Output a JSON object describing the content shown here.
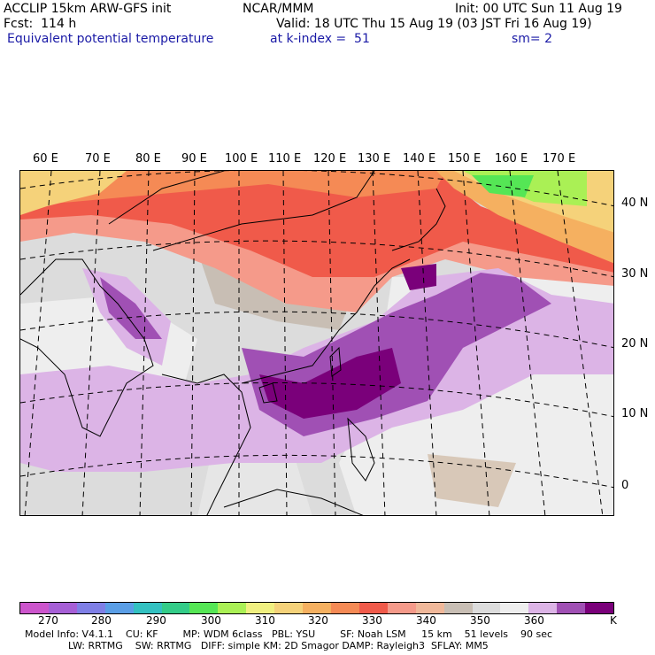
{
  "header": {
    "line1_left": "ACCLIP 15km ARW-GFS init",
    "line1_center": "NCAR/MMM",
    "line1_right": "Init: 00 UTC Sun 11 Aug 19",
    "line2_left": "Fcst:  114 h",
    "line2_right": "Valid: 18 UTC Thu 15 Aug 19 (03 JST Fri 16 Aug 19)",
    "line3_left": "Equivalent potential temperature",
    "line3_center": "at k-index =  51",
    "line3_right": "sm= 2"
  },
  "lon_labels": [
    "60 E",
    "70 E",
    "80 E",
    "90 E",
    "100 E",
    "110 E",
    "120 E",
    "130 E",
    "140 E",
    "150 E",
    "160 E",
    "170 E"
  ],
  "lat_labels": [
    "40 N",
    "30 N",
    "20 N",
    "10 N",
    "0"
  ],
  "colorbar": {
    "colors": [
      "#cc55cc",
      "#a65fd6",
      "#7f7fe6",
      "#5a9ee6",
      "#33c1c1",
      "#33cc88",
      "#55e655",
      "#aaf055",
      "#f0f080",
      "#f5d27a",
      "#f5b060",
      "#f58a55",
      "#f05a4a",
      "#f59a8a",
      "#f0b89a",
      "#c8beb4",
      "#dcdcdc",
      "#eeeeee",
      "#dcb4e6",
      "#a050b4",
      "#7a007a"
    ],
    "labels": [
      "270",
      "280",
      "290",
      "300",
      "310",
      "320",
      "330",
      "340",
      "350",
      "360",
      "K"
    ]
  },
  "footer": {
    "line1": "Model Info: V4.1.1    CU: KF        MP: WDM 6class   PBL: YSU        SF: Noah LSM     15 km    51 levels    90 sec",
    "line2": "              LW: RRTMG    SW: RRTMG   DIFF: simple KM: 2D Smagor DAMP: Rayleigh3  SFLAY: MM5"
  }
}
